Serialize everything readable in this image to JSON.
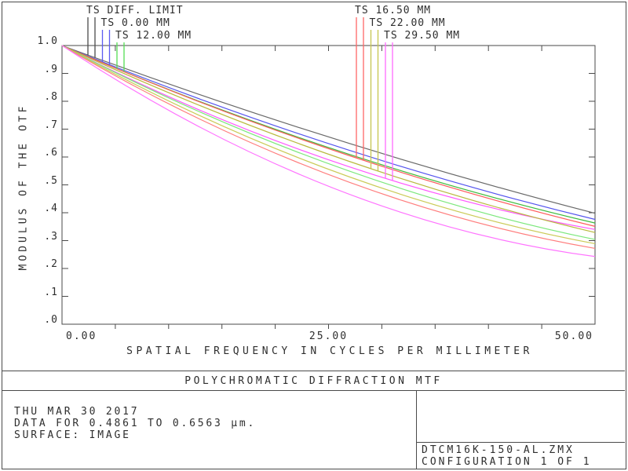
{
  "window": {
    "title_bar": "POLYCHROMATIC DIFFRACTION MTF"
  },
  "chart_data": {
    "type": "line",
    "title": "POLYCHROMATIC DIFFRACTION MTF",
    "xlabel": "SPATIAL FREQUENCY IN CYCLES PER MILLIMETER",
    "ylabel": "MODULUS OF THE OTF",
    "xlim": [
      0,
      50
    ],
    "ylim": [
      0.0,
      1.0
    ],
    "grid": false,
    "x_ticks": [
      {
        "label": "0.00",
        "value": 0
      },
      {
        "label": "25.00",
        "value": 25
      },
      {
        "label": "50.00",
        "value": 50
      }
    ],
    "x_minor_tick_step": 5,
    "y_ticks": [
      {
        "label": "1.0",
        "value": 1.0
      },
      {
        "label": ".9",
        "value": 0.9
      },
      {
        "label": ".8",
        "value": 0.8
      },
      {
        "label": ".7",
        "value": 0.7
      },
      {
        "label": ".6",
        "value": 0.6
      },
      {
        "label": ".5",
        "value": 0.5
      },
      {
        "label": ".4",
        "value": 0.4
      },
      {
        "label": ".3",
        "value": 0.3
      },
      {
        "label": ".2",
        "value": 0.2
      },
      {
        "label": ".1",
        "value": 0.1
      },
      {
        "label": ".0",
        "value": 0.0
      }
    ],
    "x": [
      0,
      25,
      50
    ],
    "series": [
      {
        "name": "TS DIFF. LIMIT",
        "color": "#696969",
        "values": [
          1.0,
          0.672,
          0.398
        ]
      },
      {
        "name": "TS 0.00 MM (T=S)",
        "color": "#5555ee",
        "values": [
          1.0,
          0.648,
          0.376
        ]
      },
      {
        "name": "TS 12.00 MM (S)",
        "color": "#3dbb3d",
        "values": [
          1.0,
          0.634,
          0.363
        ]
      },
      {
        "name": "TS 16.50 MM (S)",
        "color": "#ff5c5c",
        "values": [
          1.0,
          0.63,
          0.351
        ]
      },
      {
        "name": "TS 29.50 MM (S)",
        "color": "#ff55ff",
        "values": [
          1.0,
          0.59,
          0.34
        ]
      },
      {
        "name": "TS 22.00 MM (S)",
        "color": "#b9b93f",
        "values": [
          1.0,
          0.61,
          0.329
        ]
      },
      {
        "name": "TS 12.00 MM (T)",
        "color": "#7de87d",
        "values": [
          1.0,
          0.576,
          0.304
        ]
      },
      {
        "name": "TS 22.00 MM (T)",
        "color": "#cbcb58",
        "values": [
          1.0,
          0.556,
          0.289
        ]
      },
      {
        "name": "TS 16.50 MM (T)",
        "color": "#ff7d7d",
        "values": [
          1.0,
          0.537,
          0.272
        ]
      },
      {
        "name": "TS 29.50 MM (T)",
        "color": "#ff73ff",
        "values": [
          1.0,
          0.495,
          0.243
        ]
      }
    ],
    "legend": {
      "position": "top",
      "entries": [
        {
          "label": "TS DIFF. LIMIT",
          "color": "#4a4a4a",
          "block": "left",
          "row": 0,
          "series": 0
        },
        {
          "label": "TS 0.00 MM",
          "color": "#5c5cf0",
          "block": "left",
          "row": 1,
          "series": 1
        },
        {
          "label": "TS 12.00 MM",
          "color": "#55dd55",
          "block": "left",
          "row": 2,
          "series": 2
        },
        {
          "label": "TS 16.50 MM",
          "color": "#ff6666",
          "block": "right",
          "row": 0,
          "series": 3
        },
        {
          "label": "TS 22.00 MM",
          "color": "#c6c64f",
          "block": "right",
          "row": 1,
          "series": 5
        },
        {
          "label": "TS 29.50 MM",
          "color": "#ff6bff",
          "block": "right",
          "row": 2,
          "series": 4
        }
      ]
    }
  },
  "footer": {
    "date_line": "THU MAR 30 2017",
    "data_line": "DATA FOR 0.4861 TO 0.6563 µm.",
    "surface_line": "SURFACE: IMAGE",
    "file_name": "DTCM16K-150-AL.ZMX",
    "configuration": "CONFIGURATION 1 OF 1"
  },
  "colors": {
    "frame": "#4a4a4a",
    "text": "#2e2e2e",
    "background": "#ffffff"
  }
}
